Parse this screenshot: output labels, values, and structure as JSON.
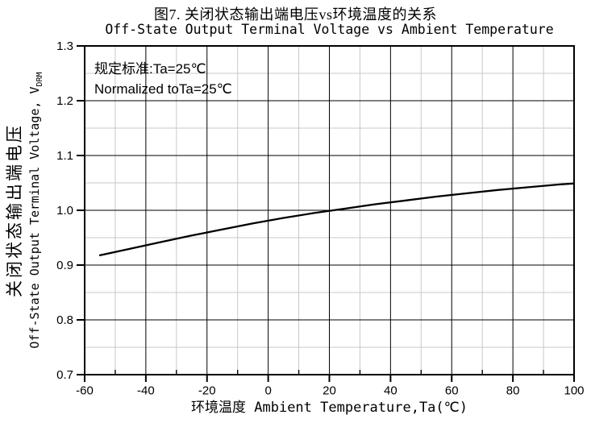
{
  "chart_data": {
    "type": "line",
    "title_cn": "图7. 关闭状态输出端电压vs环境温度的关系",
    "title_en": "Off-State Output Terminal Voltage vs Ambient Temperature",
    "xlabel": "环境温度 Ambient Temperature,Ta(℃)",
    "ylabel_cn": "关闭状态输出端电压",
    "ylabel_en": "Off-State Output Terminal Voltage, V",
    "ylabel_en_sub": "DRM",
    "annotation_cn": "规定标准:Ta=25℃",
    "annotation_en": "Normalized toTa=25℃",
    "xlim": [
      -60,
      100
    ],
    "ylim": [
      0.7,
      1.3
    ],
    "x_ticks": [
      -60,
      -40,
      -20,
      0,
      20,
      40,
      60,
      80,
      100
    ],
    "x_tick_labels": [
      "-60",
      "-40",
      "-20",
      "0",
      "20",
      "40",
      "60",
      "80",
      "100"
    ],
    "x_minor_step": 10,
    "y_ticks": [
      0.7,
      0.8,
      0.9,
      1.0,
      1.1,
      1.2,
      1.3
    ],
    "y_tick_labels": [
      "0.7",
      "0.8",
      "0.9",
      "1.0",
      "1.1",
      "1.2",
      "1.3"
    ],
    "y_minor_step": 0.05,
    "grid": {
      "on": true,
      "major_color": "#000000",
      "minor_color": "#c9c9c9"
    },
    "colors": {
      "curve": "#000000",
      "border": "#000000",
      "text": "#000000",
      "background": "#ffffff"
    },
    "series": [
      {
        "name": "Off-State Output Terminal Voltage (normalized to Ta=25C)",
        "x": [
          -55,
          -45,
          -35,
          -25,
          -15,
          -5,
          5,
          15,
          25,
          35,
          45,
          55,
          65,
          75,
          85,
          95,
          100
        ],
        "y": [
          0.918,
          0.93,
          0.942,
          0.954,
          0.965,
          0.976,
          0.986,
          0.995,
          1.003,
          1.011,
          1.018,
          1.025,
          1.031,
          1.037,
          1.042,
          1.047,
          1.049
        ]
      }
    ]
  }
}
